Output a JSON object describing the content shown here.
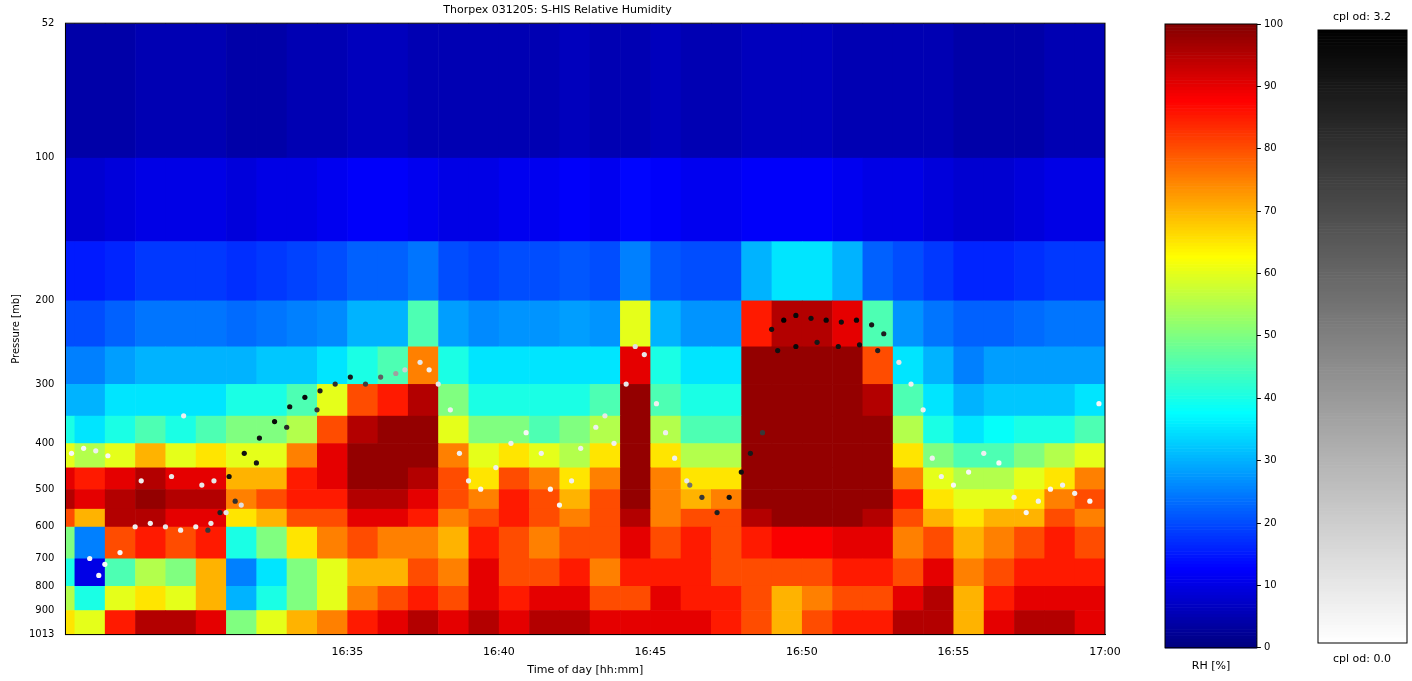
{
  "chart_data": {
    "type": "heatmap",
    "title": "Thorpex 031205: S-HIS Relative Humidity",
    "x_label": "Time of day [hh:mm]",
    "y_label": "Pressure [mb]",
    "xlim": [
      985.7,
      1020
    ],
    "xticks": [
      {
        "value": 995,
        "label": "16:35"
      },
      {
        "value": 1000,
        "label": "16:40"
      },
      {
        "value": 1005,
        "label": "16:45"
      },
      {
        "value": 1010,
        "label": "16:50"
      },
      {
        "value": 1015,
        "label": "16:55"
      },
      {
        "value": 1020,
        "label": "17:00"
      }
    ],
    "ylim": [
      52,
      1013
    ],
    "yticks": [
      52,
      100,
      200,
      300,
      400,
      500,
      600,
      700,
      800,
      900,
      1013
    ],
    "log": "y",
    "grid": false,
    "x_edges": [
      985.7,
      986,
      987,
      988,
      989,
      990,
      991,
      992,
      993,
      994,
      995,
      996,
      997,
      998,
      999,
      1000,
      1001,
      1002,
      1003,
      1004,
      1005,
      1006,
      1007,
      1008,
      1009,
      1010,
      1011,
      1012,
      1013,
      1014,
      1015,
      1016,
      1017,
      1018,
      1019,
      1020
    ],
    "y_edges": [
      52,
      100,
      150,
      200,
      250,
      300,
      350,
      400,
      450,
      500,
      550,
      600,
      700,
      800,
      900,
      1013
    ],
    "rh": [
      [
        4,
        4,
        4,
        5,
        5,
        5,
        4,
        4,
        5,
        5,
        6,
        6,
        5,
        5,
        5,
        5,
        5,
        6,
        5,
        5,
        6,
        5,
        5,
        6,
        6,
        6,
        5,
        5,
        5,
        5,
        4,
        4,
        4,
        5,
        5
      ],
      [
        8,
        8,
        9,
        10,
        10,
        10,
        9,
        10,
        10,
        11,
        12,
        12,
        11,
        10,
        10,
        11,
        11,
        12,
        11,
        13,
        12,
        11,
        11,
        12,
        12,
        12,
        11,
        10,
        10,
        9,
        8,
        8,
        9,
        10,
        10
      ],
      [
        15,
        15,
        16,
        18,
        18,
        18,
        17,
        18,
        19,
        20,
        22,
        22,
        24,
        20,
        19,
        20,
        20,
        21,
        20,
        25,
        21,
        20,
        20,
        30,
        35,
        35,
        30,
        22,
        20,
        18,
        16,
        16,
        17,
        18,
        18
      ],
      [
        20,
        20,
        22,
        24,
        24,
        24,
        23,
        24,
        25,
        26,
        30,
        30,
        45,
        28,
        26,
        27,
        27,
        28,
        27,
        60,
        30,
        27,
        27,
        85,
        95,
        95,
        90,
        45,
        27,
        24,
        22,
        22,
        23,
        24,
        24
      ],
      [
        25,
        25,
        28,
        30,
        30,
        30,
        30,
        32,
        32,
        35,
        40,
        45,
        75,
        40,
        35,
        35,
        35,
        35,
        35,
        90,
        40,
        35,
        35,
        98,
        98,
        98,
        98,
        80,
        35,
        30,
        25,
        28,
        28,
        28,
        28
      ],
      [
        30,
        30,
        35,
        35,
        35,
        35,
        40,
        40,
        45,
        60,
        80,
        85,
        95,
        50,
        40,
        40,
        40,
        40,
        45,
        98,
        45,
        40,
        40,
        98,
        98,
        98,
        98,
        95,
        45,
        35,
        30,
        32,
        32,
        32,
        35
      ],
      [
        40,
        35,
        40,
        45,
        40,
        45,
        50,
        50,
        55,
        80,
        95,
        98,
        98,
        60,
        50,
        50,
        45,
        50,
        55,
        98,
        55,
        45,
        45,
        98,
        98,
        98,
        98,
        98,
        55,
        40,
        35,
        38,
        40,
        40,
        45
      ],
      [
        60,
        55,
        60,
        70,
        60,
        65,
        60,
        60,
        75,
        90,
        98,
        98,
        98,
        75,
        60,
        65,
        60,
        55,
        65,
        98,
        65,
        55,
        55,
        98,
        98,
        98,
        98,
        98,
        65,
        50,
        45,
        45,
        50,
        55,
        60
      ],
      [
        90,
        85,
        90,
        95,
        90,
        90,
        70,
        70,
        85,
        90,
        98,
        98,
        95,
        80,
        65,
        80,
        75,
        65,
        75,
        98,
        75,
        65,
        65,
        98,
        98,
        98,
        98,
        98,
        75,
        60,
        55,
        55,
        60,
        65,
        75
      ],
      [
        95,
        90,
        95,
        98,
        95,
        95,
        75,
        80,
        85,
        85,
        95,
        95,
        90,
        80,
        75,
        85,
        80,
        70,
        80,
        98,
        75,
        70,
        75,
        98,
        98,
        98,
        98,
        98,
        85,
        65,
        60,
        60,
        65,
        75,
        80
      ],
      [
        80,
        70,
        95,
        95,
        90,
        90,
        65,
        70,
        80,
        80,
        90,
        90,
        85,
        75,
        80,
        85,
        80,
        75,
        80,
        95,
        75,
        80,
        80,
        95,
        98,
        98,
        98,
        95,
        80,
        70,
        65,
        70,
        70,
        80,
        75
      ],
      [
        50,
        25,
        80,
        85,
        80,
        85,
        40,
        50,
        65,
        75,
        80,
        75,
        75,
        70,
        85,
        80,
        75,
        80,
        80,
        90,
        80,
        85,
        80,
        85,
        88,
        88,
        90,
        90,
        75,
        80,
        70,
        75,
        80,
        85,
        80
      ],
      [
        40,
        10,
        45,
        55,
        50,
        70,
        25,
        35,
        50,
        60,
        70,
        70,
        80,
        75,
        90,
        80,
        80,
        85,
        75,
        85,
        85,
        85,
        80,
        80,
        80,
        80,
        85,
        85,
        80,
        90,
        75,
        80,
        85,
        85,
        85
      ],
      [
        55,
        40,
        60,
        65,
        60,
        70,
        30,
        40,
        50,
        60,
        75,
        80,
        85,
        80,
        90,
        85,
        90,
        90,
        80,
        80,
        90,
        85,
        85,
        80,
        70,
        75,
        80,
        80,
        90,
        95,
        70,
        85,
        90,
        90,
        90
      ],
      [
        65,
        60,
        85,
        95,
        95,
        90,
        50,
        60,
        70,
        75,
        85,
        90,
        95,
        90,
        95,
        90,
        95,
        95,
        90,
        90,
        90,
        90,
        85,
        80,
        70,
        80,
        85,
        85,
        95,
        95,
        70,
        90,
        95,
        95,
        90
      ]
    ],
    "colorbar": {
      "label": "RH [%]",
      "range": [
        0,
        100
      ],
      "ticks": [
        0,
        10,
        20,
        30,
        40,
        50,
        60,
        70,
        80,
        90,
        100
      ]
    },
    "points": {
      "type": "scatter",
      "marker": "dot",
      "x": [
        985.9,
        986.3,
        986.7,
        987.1,
        986.5,
        986.8,
        987.0,
        987.5,
        988.0,
        988.5,
        989.0,
        989.5,
        990.0,
        990.5,
        991.0,
        991.5,
        989.6,
        988.2,
        989.2,
        990.2,
        990.6,
        990.4,
        990.8,
        991.1,
        991.6,
        992.1,
        992.6,
        993.1,
        993.6,
        994.1,
        994.6,
        995.1,
        995.6,
        996.1,
        996.6,
        996.9,
        997.4,
        997.7,
        998.0,
        998.4,
        991.3,
        992.0,
        993.0,
        994.0,
        998.7,
        999.0,
        999.4,
        999.9,
        1000.4,
        1000.9,
        1001.4,
        1001.7,
        1002.0,
        1002.4,
        1002.7,
        1003.2,
        1003.5,
        1003.8,
        1004.2,
        1004.5,
        1004.8,
        1005.2,
        1005.5,
        1005.8,
        1006.2,
        1006.3,
        1006.7,
        1007.2,
        1007.6,
        1008.0,
        1008.3,
        1008.7,
        1009.0,
        1009.4,
        1009.8,
        1010.3,
        1010.8,
        1011.3,
        1011.8,
        1012.3,
        1012.7,
        1009.2,
        1009.8,
        1010.5,
        1011.2,
        1011.9,
        1012.5,
        1013.2,
        1013.6,
        1014.0,
        1014.3,
        1014.6,
        1015.0,
        1015.5,
        1016.0,
        1016.5,
        1017.0,
        1017.4,
        1017.8,
        1018.2,
        1018.6,
        1019.0,
        1019.5,
        1019.8
      ],
      "y": [
        420,
        410,
        415,
        425,
        700,
        760,
        720,
        680,
        600,
        590,
        600,
        610,
        600,
        590,
        560,
        540,
        350,
        480,
        470,
        490,
        480,
        610,
        560,
        470,
        420,
        390,
        360,
        335,
        320,
        310,
        300,
        290,
        300,
        290,
        285,
        280,
        270,
        280,
        300,
        340,
        530,
        440,
        370,
        340,
        420,
        480,
        500,
        450,
        400,
        380,
        420,
        500,
        540,
        480,
        410,
        370,
        350,
        400,
        300,
        250,
        260,
        330,
        380,
        430,
        480,
        490,
        520,
        560,
        520,
        460,
        420,
        380,
        230,
        220,
        215,
        218,
        220,
        222,
        220,
        225,
        235,
        255,
        250,
        245,
        250,
        248,
        255,
        270,
        300,
        340,
        430,
        470,
        490,
        460,
        420,
        440,
        520,
        560,
        530,
        500,
        490,
        510,
        530,
        330
      ],
      "od": [
        0.1,
        0.1,
        0.2,
        0.1,
        0.1,
        0.1,
        0.1,
        0.1,
        0.2,
        0.2,
        0.3,
        0.2,
        0.2,
        0.3,
        0.3,
        0.4,
        0.2,
        0.2,
        0.3,
        0.3,
        0.3,
        2.5,
        2.8,
        3.0,
        3.0,
        3.0,
        3.1,
        3.0,
        3.1,
        2.8,
        2.6,
        2.9,
        2.4,
        2.0,
        1.2,
        0.6,
        0.3,
        0.2,
        0.3,
        0.2,
        2.6,
        2.9,
        2.7,
        2.5,
        0.2,
        0.2,
        0.1,
        0.2,
        0.2,
        0.1,
        0.2,
        0.1,
        0.1,
        0.2,
        0.2,
        0.2,
        0.3,
        0.2,
        0.3,
        0.4,
        0.3,
        0.2,
        0.2,
        0.2,
        0.3,
        1.8,
        2.5,
        2.8,
        3.0,
        3.0,
        2.9,
        2.5,
        3.0,
        3.2,
        3.1,
        3.0,
        3.1,
        3.0,
        3.1,
        2.9,
        2.8,
        3.0,
        3.1,
        2.9,
        3.0,
        3.0,
        2.8,
        0.3,
        0.2,
        0.2,
        0.2,
        0.2,
        0.1,
        0.1,
        0.2,
        0.1,
        0.2,
        0.1,
        0.2,
        0.1,
        0.2,
        0.2,
        0.1,
        0.1
      ]
    },
    "od_colorbar": {
      "range": [
        0,
        3.2
      ],
      "top_label": "cpl od: 3.2",
      "bottom_label": "cpl od: 0.0"
    }
  }
}
